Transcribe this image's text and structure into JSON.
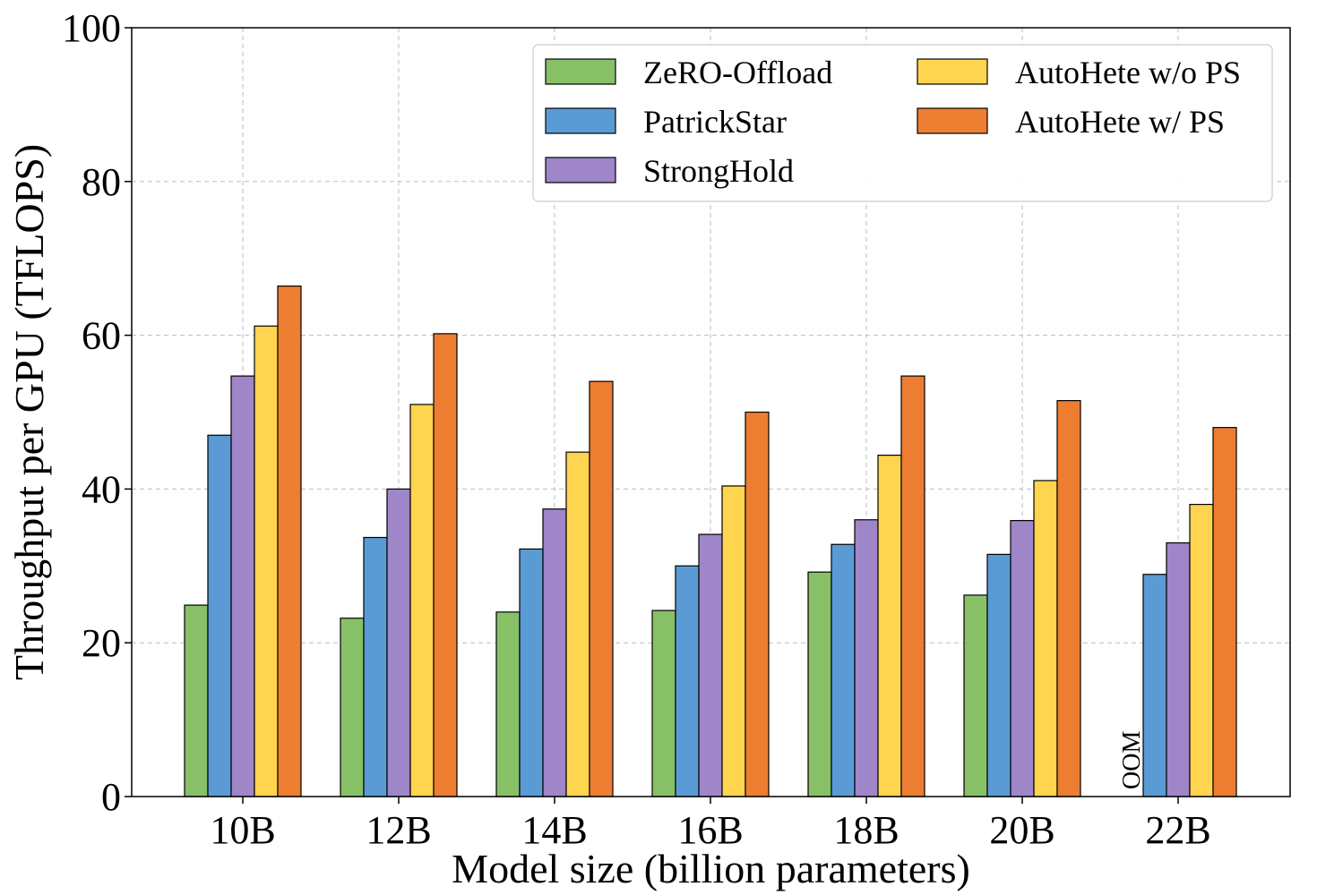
{
  "chart_data": {
    "type": "bar",
    "title": "",
    "xlabel": "Model size (billion parameters)",
    "ylabel": "Throughput per GPU (TFLOPS)",
    "ylim": [
      0,
      100
    ],
    "yticks": [
      0,
      20,
      40,
      60,
      80,
      100
    ],
    "grid": true,
    "legend_position": "top-right",
    "categories": [
      "10B",
      "12B",
      "14B",
      "16B",
      "18B",
      "20B",
      "22B"
    ],
    "series": [
      {
        "name": "ZeRO-Offload",
        "color": "#88c068",
        "values": [
          24.9,
          23.2,
          24.0,
          24.2,
          29.2,
          26.2,
          null
        ]
      },
      {
        "name": "PatrickStar",
        "color": "#5b9bd5",
        "values": [
          47.0,
          33.7,
          32.2,
          30.0,
          32.8,
          31.5,
          28.9
        ]
      },
      {
        "name": "StrongHold",
        "color": "#9e86c8",
        "values": [
          54.7,
          40.0,
          37.4,
          34.1,
          36.0,
          35.9,
          33.0
        ]
      },
      {
        "name": "AutoHete w/o PS",
        "color": "#ffd44f",
        "values": [
          61.2,
          51.0,
          44.8,
          40.4,
          44.4,
          41.1,
          38.0
        ]
      },
      {
        "name": "AutoHete w/ PS",
        "color": "#ed7d31",
        "values": [
          66.4,
          60.2,
          54.0,
          50.0,
          54.7,
          51.5,
          48.0
        ]
      }
    ],
    "annotations": [
      {
        "category": "22B",
        "series": "ZeRO-Offload",
        "text": "OOM"
      }
    ]
  }
}
